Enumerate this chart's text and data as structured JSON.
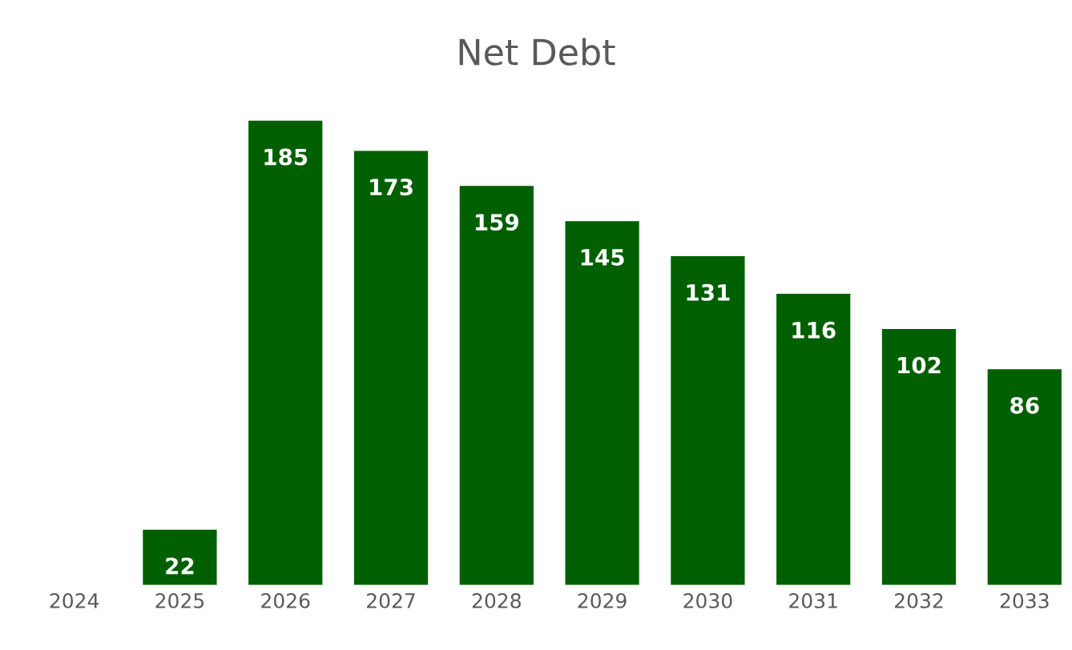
{
  "chart_data": {
    "type": "bar",
    "title": "Net Debt",
    "categories": [
      "2024",
      "2025",
      "2026",
      "2027",
      "2028",
      "2029",
      "2030",
      "2031",
      "2032",
      "2033"
    ],
    "values": [
      0,
      22,
      185,
      173,
      159,
      145,
      131,
      116,
      102,
      86
    ],
    "value_labels": [
      null,
      "22",
      "185",
      "173",
      "159",
      "145",
      "131",
      "116",
      "102",
      "86"
    ],
    "color": "#006000",
    "grid": false,
    "legend": false
  }
}
